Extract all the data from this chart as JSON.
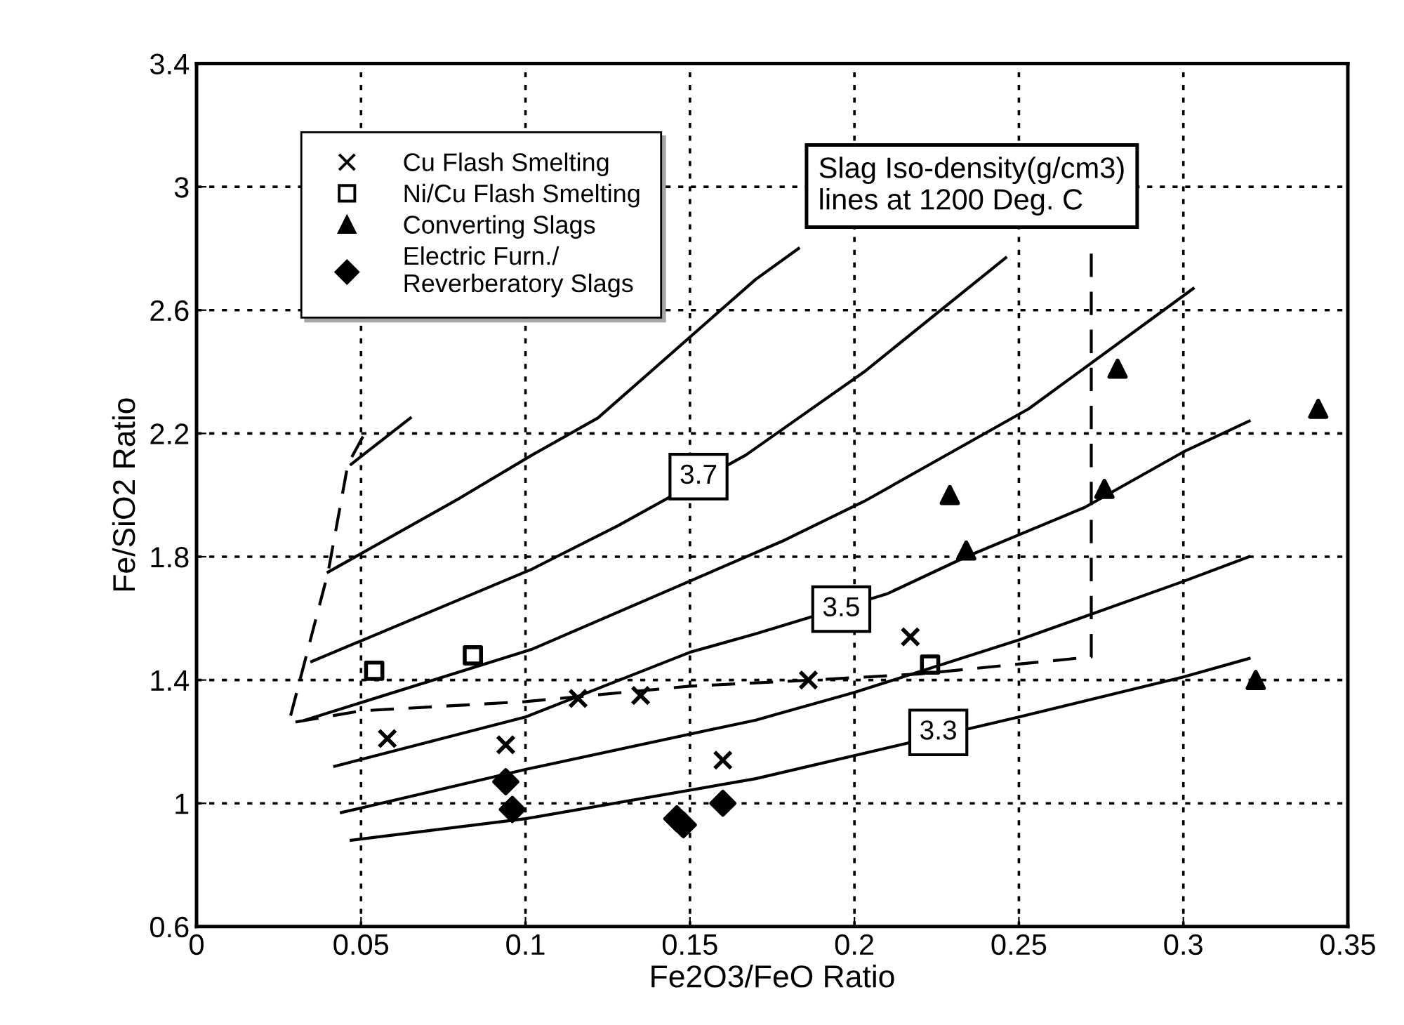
{
  "chart_data": {
    "type": "scatter",
    "xlabel": "Fe2O3/FeO Ratio",
    "ylabel": "Fe/SiO2 Ratio",
    "xlim": [
      0,
      0.35
    ],
    "xticks": [
      0,
      0.05,
      0.1,
      0.15,
      0.2,
      0.25,
      0.3,
      0.35
    ],
    "ylim": [
      0.6,
      3.4
    ],
    "yticks": [
      0.6,
      1,
      1.4,
      1.8,
      2.2,
      2.6,
      3,
      3.4
    ],
    "grid": true,
    "legend": "top left",
    "series": [
      {
        "name": "Cu Flash Smelting",
        "marker": "cross",
        "color": "#000000",
        "x": [
          0.058,
          0.094,
          0.116,
          0.135,
          0.16,
          0.186,
          0.217
        ],
        "values": [
          1.21,
          1.19,
          1.34,
          1.35,
          1.14,
          1.4,
          1.54
        ]
      },
      {
        "name": "Ni/Cu Flash Smelting",
        "marker": "square",
        "color": "#000000",
        "x": [
          0.054,
          0.084,
          0.223
        ],
        "values": [
          1.43,
          1.48,
          1.45
        ]
      },
      {
        "name": "Converting Slags",
        "marker": "triangle",
        "color": "#000000",
        "x": [
          0.229,
          0.234,
          0.276,
          0.28,
          0.341,
          0.322
        ],
        "values": [
          2.0,
          1.82,
          2.02,
          2.41,
          2.28,
          1.4
        ]
      },
      {
        "name": "Electric Furn./\nReverberatory Slags",
        "marker": "diamond",
        "color": "#000000",
        "x": [
          0.094,
          0.096,
          0.146,
          0.148,
          0.16
        ],
        "values": [
          1.07,
          0.98,
          0.95,
          0.93,
          1.0
        ]
      },
      {
        "type": "line",
        "line_style": "solid",
        "color": "#000000",
        "x": [
          0.047,
          0.065
        ],
        "values": [
          2.1,
          2.25
        ]
      },
      {
        "type": "line",
        "line_style": "solid",
        "color": "#000000",
        "x": [
          0.04,
          0.08,
          0.102,
          0.122,
          0.17,
          0.183
        ],
        "values": [
          1.75,
          1.99,
          2.13,
          2.25,
          2.7,
          2.8
        ]
      },
      {
        "type": "line",
        "line_style": "solid",
        "color": "#000000",
        "x": [
          0.035,
          0.102,
          0.128,
          0.167,
          0.183,
          0.203,
          0.246
        ],
        "values": [
          1.46,
          1.76,
          1.9,
          2.13,
          2.25,
          2.4,
          2.77
        ]
      },
      {
        "type": "line",
        "line_style": "solid",
        "color": "#000000",
        "x": [
          0.033,
          0.102,
          0.178,
          0.203,
          0.253,
          0.303
        ],
        "values": [
          1.27,
          1.5,
          1.85,
          1.98,
          2.28,
          2.67
        ]
      },
      {
        "type": "line",
        "line_style": "solid",
        "color": "#000000",
        "x": [
          0.042,
          0.1,
          0.15,
          0.17,
          0.21,
          0.234,
          0.27,
          0.3,
          0.32
        ],
        "values": [
          1.12,
          1.28,
          1.49,
          1.55,
          1.68,
          1.8,
          1.96,
          2.14,
          2.24
        ]
      },
      {
        "type": "line",
        "line_style": "solid",
        "color": "#000000",
        "x": [
          0.044,
          0.1,
          0.17,
          0.2,
          0.25,
          0.3,
          0.32
        ],
        "values": [
          0.97,
          1.11,
          1.27,
          1.36,
          1.53,
          1.72,
          1.8
        ]
      },
      {
        "type": "line",
        "line_style": "solid",
        "color": "#000000",
        "x": [
          0.047,
          0.1,
          0.17,
          0.21,
          0.25,
          0.3,
          0.32
        ],
        "values": [
          0.88,
          0.95,
          1.08,
          1.18,
          1.28,
          1.41,
          1.47
        ]
      },
      {
        "type": "line",
        "line_style": "dashed",
        "color": "#000000",
        "x": [
          0.0506,
          0.046,
          0.04,
          0.028,
          0.05,
          0.1,
          0.15,
          0.1876,
          0.22,
          0.272,
          0.272
        ],
        "values": [
          2.19,
          2.1,
          1.75,
          1.26,
          1.3,
          1.33,
          1.38,
          1.4,
          1.42,
          1.475,
          2.79
        ]
      }
    ],
    "annotations": [
      "Slag Iso-density(g/cm3)\nlines at 1200 Deg. C",
      {
        "text": "3.7",
        "x": 0.1526,
        "y": 2.06
      },
      {
        "text": "3.5",
        "x": 0.196,
        "y": 1.63
      },
      {
        "text": "3.3",
        "x": 0.2255,
        "y": 1.23
      }
    ]
  }
}
